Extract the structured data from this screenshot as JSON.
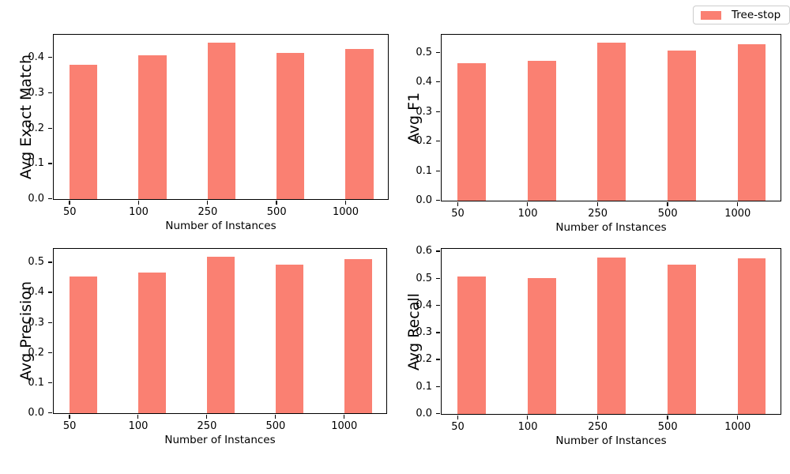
{
  "figure": {
    "background": "#ffffff",
    "bar_color": "#fa8072",
    "spine_color": "#000000"
  },
  "legend": {
    "label": "Tree-stop",
    "swatch_color": "#fa8072",
    "position": "upper right"
  },
  "chart_data": [
    {
      "type": "bar",
      "position": "top-left",
      "series_name": "Tree-stop",
      "xlabel": "Number of Instances",
      "ylabel": "Avg Exact Match",
      "categories": [
        "50",
        "100",
        "250",
        "500",
        "1000"
      ],
      "values": [
        0.38,
        0.408,
        0.443,
        0.414,
        0.424
      ],
      "ylim": [
        0,
        0.465
      ],
      "yticks": [
        0.0,
        0.1,
        0.2,
        0.3,
        0.4
      ],
      "grid": false
    },
    {
      "type": "bar",
      "position": "top-right",
      "series_name": "Tree-stop",
      "xlabel": "Number of Instances",
      "ylabel": "Avg F1",
      "categories": [
        "50",
        "100",
        "250",
        "500",
        "1000"
      ],
      "values": [
        0.465,
        0.473,
        0.533,
        0.506,
        0.527
      ],
      "ylim": [
        0,
        0.56
      ],
      "yticks": [
        0.0,
        0.1,
        0.2,
        0.3,
        0.4,
        0.5
      ],
      "grid": false
    },
    {
      "type": "bar",
      "position": "bottom-left",
      "series_name": "Tree-stop",
      "xlabel": "Number of Instances",
      "ylabel": "Avg Precision",
      "categories": [
        "50",
        "100",
        "250",
        "500",
        "1000"
      ],
      "values": [
        0.454,
        0.466,
        0.518,
        0.492,
        0.512
      ],
      "ylim": [
        0,
        0.545
      ],
      "yticks": [
        0.0,
        0.1,
        0.2,
        0.3,
        0.4,
        0.5
      ],
      "grid": false
    },
    {
      "type": "bar",
      "position": "bottom-right",
      "series_name": "Tree-stop",
      "xlabel": "Number of Instances",
      "ylabel": "Avg Recall",
      "categories": [
        "50",
        "100",
        "250",
        "500",
        "1000"
      ],
      "values": [
        0.507,
        0.503,
        0.578,
        0.552,
        0.576
      ],
      "ylim": [
        0,
        0.61
      ],
      "yticks": [
        0.0,
        0.1,
        0.2,
        0.3,
        0.4,
        0.5,
        0.6
      ],
      "grid": false
    }
  ]
}
